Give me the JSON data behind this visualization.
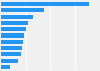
{
  "values": [
    7.2,
    3.5,
    2.6,
    2.2,
    2.0,
    1.9,
    1.8,
    1.7,
    1.6,
    1.4,
    0.7
  ],
  "bar_color": "#2196F3",
  "background_color": "#f0f0f0",
  "plot_bg_color": "#f0f0f0",
  "xlim": [
    0,
    8.0
  ],
  "grid_color": "#ffffff",
  "bar_height": 0.65,
  "grid_lines": [
    2,
    4,
    6,
    8
  ]
}
